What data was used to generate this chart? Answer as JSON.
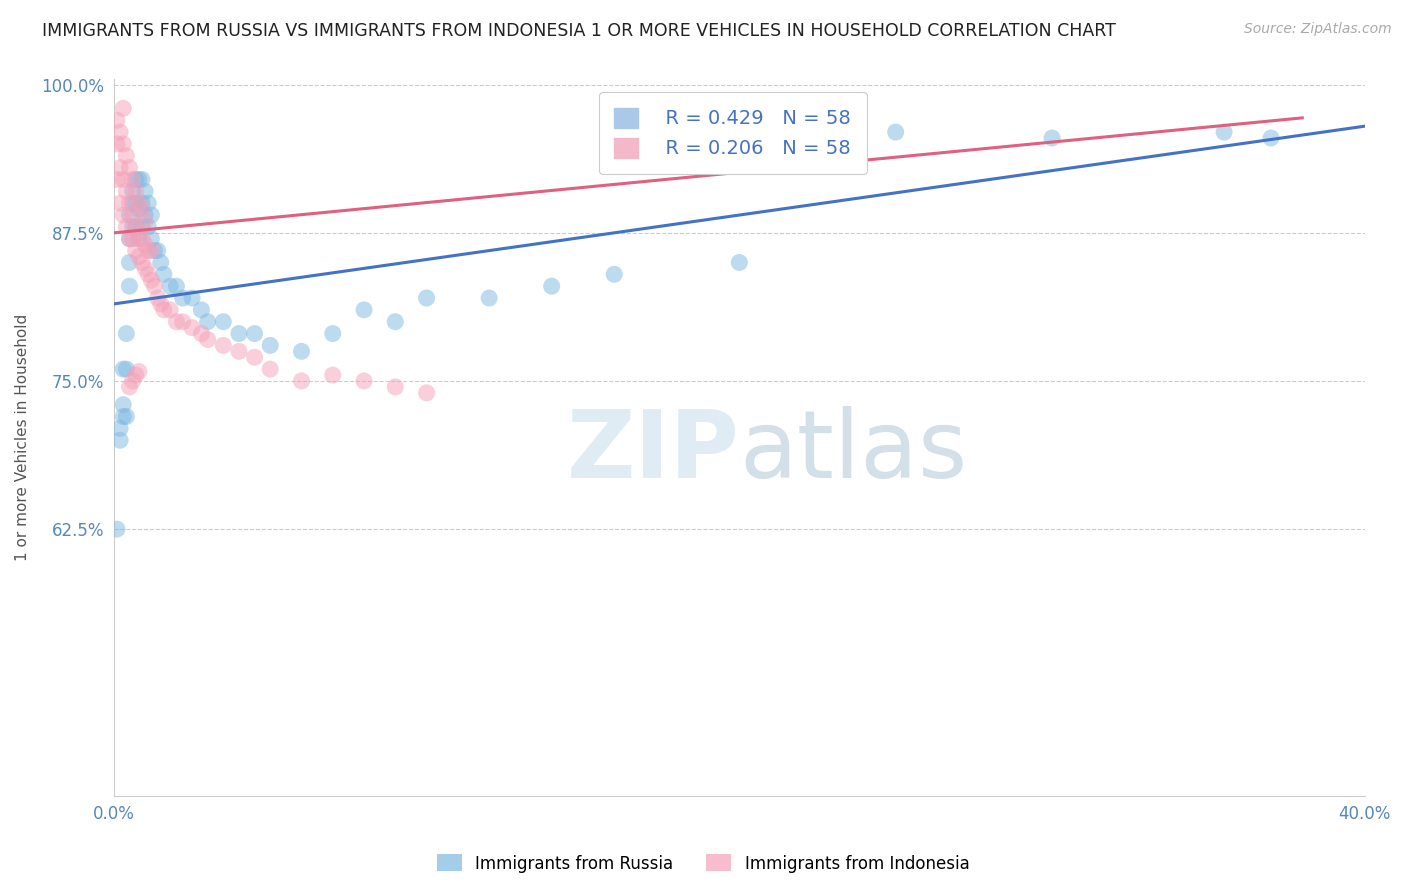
{
  "title": "IMMIGRANTS FROM RUSSIA VS IMMIGRANTS FROM INDONESIA 1 OR MORE VEHICLES IN HOUSEHOLD CORRELATION CHART",
  "source": "Source: ZipAtlas.com",
  "ylabel": "1 or more Vehicles in Household",
  "xlim": [
    0.0,
    0.4
  ],
  "ylim": [
    0.4,
    1.005
  ],
  "russia_color": "#7db8e0",
  "indonesia_color": "#f4a0b8",
  "russia_line_color": "#4472c4",
  "indonesia_line_color": "#e06080",
  "russia_R": 0.429,
  "indonesia_R": 0.206,
  "N": 58,
  "legend_blue_label": "Immigrants from Russia",
  "legend_pink_label": "Immigrants from Indonesia",
  "watermark_text": "ZIP",
  "watermark_text2": "atlas",
  "russia_x": [
    0.001,
    0.002,
    0.002,
    0.003,
    0.003,
    0.003,
    0.004,
    0.004,
    0.004,
    0.005,
    0.005,
    0.005,
    0.005,
    0.006,
    0.006,
    0.006,
    0.007,
    0.007,
    0.007,
    0.008,
    0.008,
    0.008,
    0.009,
    0.009,
    0.009,
    0.01,
    0.01,
    0.011,
    0.011,
    0.012,
    0.012,
    0.013,
    0.014,
    0.015,
    0.016,
    0.018,
    0.02,
    0.022,
    0.025,
    0.028,
    0.03,
    0.035,
    0.04,
    0.045,
    0.05,
    0.06,
    0.07,
    0.08,
    0.09,
    0.1,
    0.12,
    0.14,
    0.16,
    0.2,
    0.25,
    0.3,
    0.355,
    0.37
  ],
  "russia_y": [
    0.625,
    0.7,
    0.71,
    0.72,
    0.73,
    0.76,
    0.72,
    0.76,
    0.79,
    0.83,
    0.85,
    0.87,
    0.89,
    0.88,
    0.9,
    0.91,
    0.88,
    0.9,
    0.92,
    0.87,
    0.895,
    0.92,
    0.88,
    0.9,
    0.92,
    0.89,
    0.91,
    0.88,
    0.9,
    0.87,
    0.89,
    0.86,
    0.86,
    0.85,
    0.84,
    0.83,
    0.83,
    0.82,
    0.82,
    0.81,
    0.8,
    0.8,
    0.79,
    0.79,
    0.78,
    0.775,
    0.79,
    0.81,
    0.8,
    0.82,
    0.82,
    0.83,
    0.84,
    0.85,
    0.96,
    0.955,
    0.96,
    0.955
  ],
  "indonesia_x": [
    0.001,
    0.001,
    0.001,
    0.002,
    0.002,
    0.002,
    0.003,
    0.003,
    0.003,
    0.003,
    0.004,
    0.004,
    0.004,
    0.005,
    0.005,
    0.005,
    0.006,
    0.006,
    0.006,
    0.007,
    0.007,
    0.007,
    0.008,
    0.008,
    0.008,
    0.009,
    0.009,
    0.009,
    0.01,
    0.01,
    0.01,
    0.011,
    0.011,
    0.012,
    0.012,
    0.013,
    0.014,
    0.015,
    0.016,
    0.018,
    0.02,
    0.022,
    0.025,
    0.028,
    0.03,
    0.035,
    0.04,
    0.045,
    0.05,
    0.06,
    0.07,
    0.08,
    0.09,
    0.1,
    0.005,
    0.006,
    0.007,
    0.008
  ],
  "indonesia_y": [
    0.92,
    0.95,
    0.97,
    0.9,
    0.93,
    0.96,
    0.89,
    0.92,
    0.95,
    0.98,
    0.88,
    0.91,
    0.94,
    0.87,
    0.9,
    0.93,
    0.87,
    0.89,
    0.92,
    0.86,
    0.88,
    0.91,
    0.855,
    0.875,
    0.9,
    0.85,
    0.87,
    0.895,
    0.845,
    0.865,
    0.885,
    0.84,
    0.86,
    0.835,
    0.86,
    0.83,
    0.82,
    0.815,
    0.81,
    0.81,
    0.8,
    0.8,
    0.795,
    0.79,
    0.785,
    0.78,
    0.775,
    0.77,
    0.76,
    0.75,
    0.755,
    0.75,
    0.745,
    0.74,
    0.745,
    0.75,
    0.755,
    0.758
  ],
  "russia_line_x": [
    0.0,
    0.4
  ],
  "russia_line_y": [
    0.82,
    0.96
  ],
  "indonesia_line_x": [
    0.0,
    0.4
  ],
  "indonesia_line_y": [
    0.87,
    0.96
  ],
  "ytick_vals": [
    0.625,
    0.75,
    0.875,
    1.0
  ],
  "ytick_labels": [
    "62.5%",
    "75.0%",
    "87.5%",
    "100.0%"
  ]
}
